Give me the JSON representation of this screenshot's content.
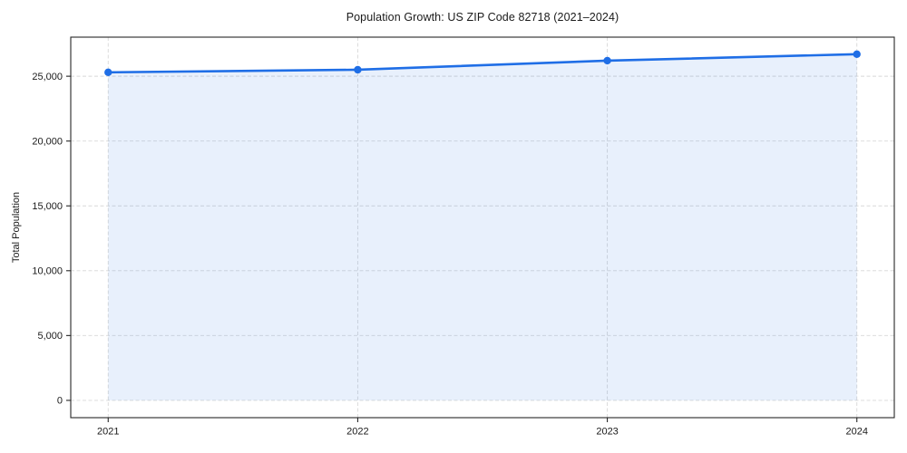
{
  "chart_data": {
    "type": "line",
    "title": "Population Growth: US ZIP Code 82718 (2021–2024)",
    "xlabel": "",
    "ylabel": "Total Population",
    "x": [
      2021,
      2022,
      2023,
      2024
    ],
    "categories": [
      "2021",
      "2022",
      "2023",
      "2024"
    ],
    "series": [
      {
        "name": "Total Population",
        "values": [
          25300,
          25500,
          26200,
          26700
        ]
      }
    ],
    "area_fill": true,
    "area_baseline": 0,
    "markers": true,
    "grid": true,
    "legend_position": "none",
    "xlim": [
      2020.85,
      2024.15
    ],
    "ylim": [
      -1334,
      28014
    ],
    "yticks": [
      0,
      5000,
      10000,
      15000,
      20000,
      25000
    ],
    "ytick_labels": [
      "0",
      "5,000",
      "10,000",
      "15,000",
      "20,000",
      "25,000"
    ],
    "xticks": [
      2021,
      2022,
      2023,
      2024
    ],
    "xtick_labels": [
      "2021",
      "2022",
      "2023",
      "2024"
    ],
    "colors": {
      "line": "#1f6ee6",
      "marker": "#1f6ee6",
      "fill": "#1f6ee6",
      "fill_opacity": 0.1,
      "grid": "#d8d8d8",
      "spine": "#262626",
      "text": "#1a1a1a"
    }
  }
}
